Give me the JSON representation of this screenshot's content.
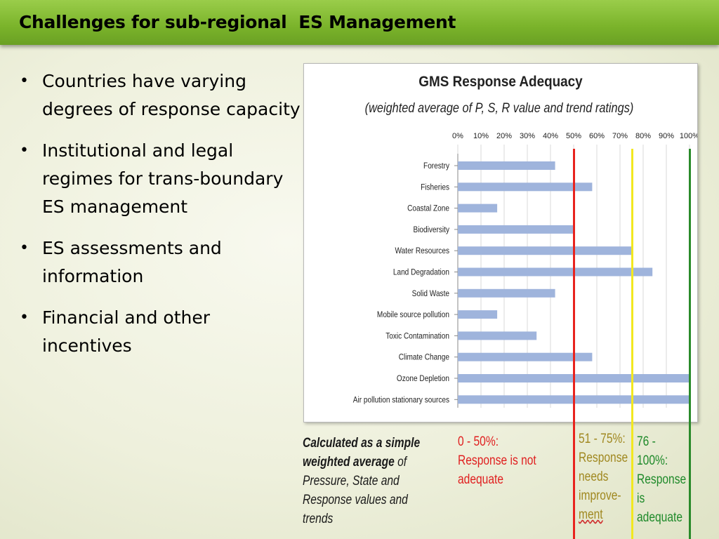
{
  "slide": {
    "title": "Challenges for sub-regional  ES Management",
    "bullets": [
      "Countries have varying degrees of response capacity",
      "Institutional and legal regimes for trans-boundary ES management",
      "ES assessments and information",
      "Financial and other incentives"
    ]
  },
  "colors": {
    "title_bar": "#8cc23c",
    "bar": "#9fb4dc",
    "red_line": "#e8231e",
    "yellow_line": "#f2e820",
    "green_line": "#2a8a2a"
  },
  "chart_data": {
    "type": "bar",
    "orientation": "horizontal",
    "title": "GMS Response Adequacy",
    "subtitle": "(weighted average of P, S, R value and trend ratings)",
    "x_ticks": [
      "0%",
      "10%",
      "20%",
      "30%",
      "40%",
      "50%",
      "60%",
      "70%",
      "80%",
      "90%",
      "100%"
    ],
    "xlim": [
      0,
      100
    ],
    "grid": true,
    "categories": [
      "Forestry",
      "Fisheries",
      "Coastal Zone",
      "Biodiversity",
      "Water Resources",
      "Land Degradation",
      "Solid Waste",
      "Mobile source pollution",
      "Toxic Contamination",
      "Climate Change",
      "Ozone Depletion",
      "Air pollution stationary sources"
    ],
    "values": [
      42,
      58,
      17,
      50,
      75,
      84,
      42,
      17,
      34,
      58,
      100,
      100
    ],
    "thresholds": [
      {
        "value": 50,
        "color": "#e8231e"
      },
      {
        "value": 75,
        "color": "#f2e820"
      },
      {
        "value": 100,
        "color": "#2a8a2a"
      }
    ]
  },
  "notes": {
    "main_bold": "Calculated as a simple weighted average",
    "main_rest": " of Pressure, State and Response values and trends",
    "red": "0 - 50%: Response  is not adequate",
    "yellow_prefix": "51 - 75%: Response needs improve-",
    "yellow_underlined": "ment",
    "green": "76 - 100%: Response is adequate"
  }
}
